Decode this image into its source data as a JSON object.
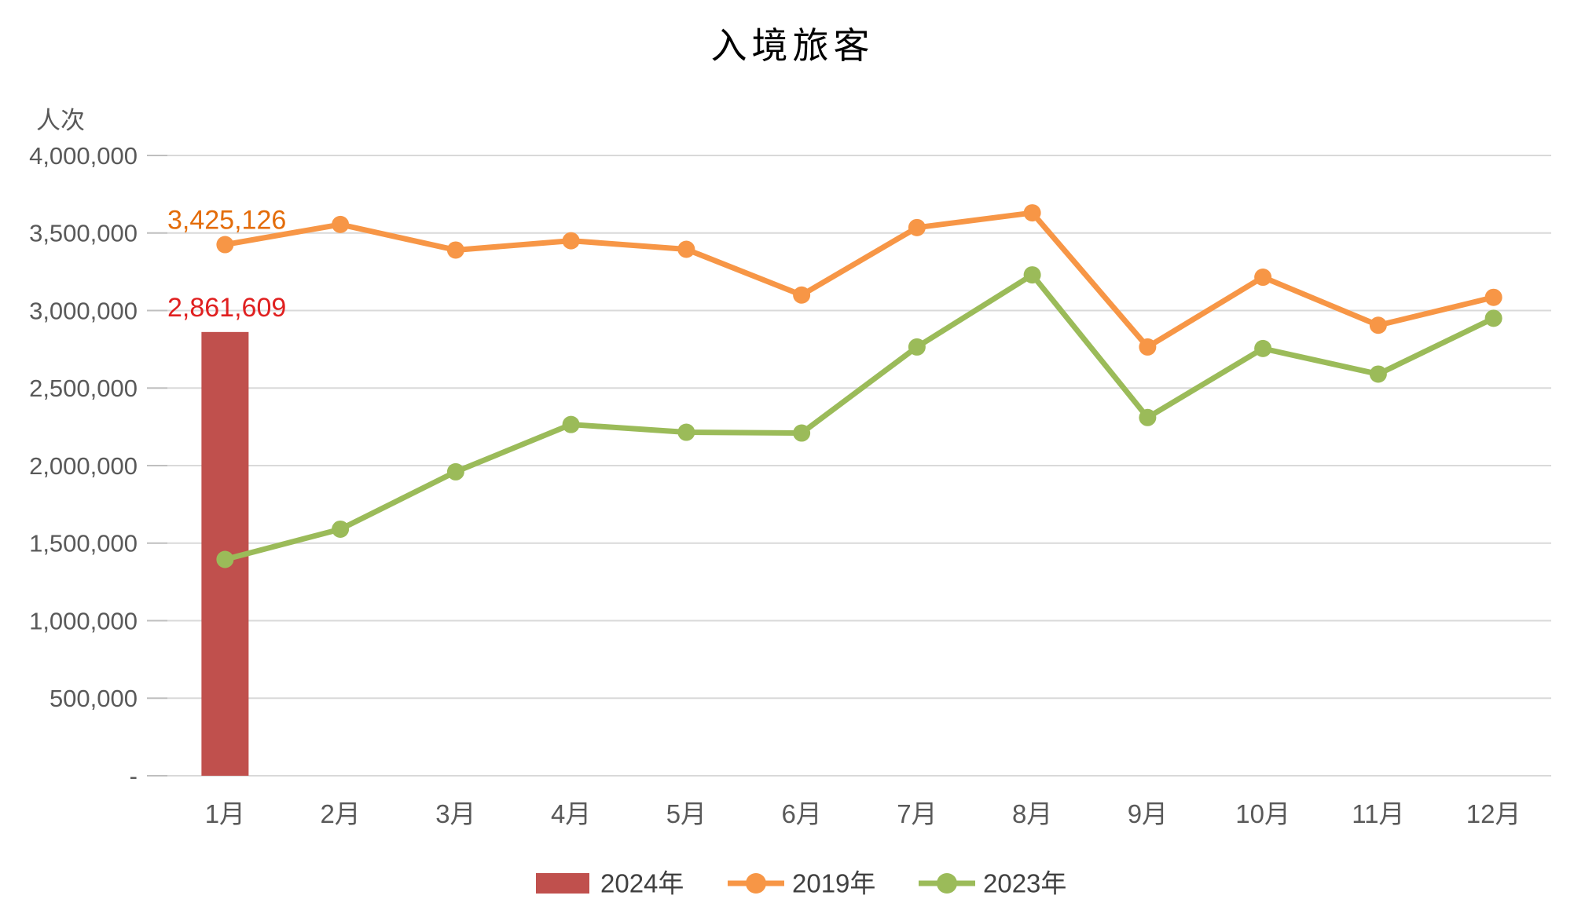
{
  "chart": {
    "title": "入境旅客",
    "unit_label": "人次"
  },
  "chart_data": {
    "type": "combo-bar-line",
    "title": "入境旅客",
    "ylabel": "人次",
    "xlabel": "",
    "ylim": [
      0,
      4000000
    ],
    "grid": "horizontal",
    "legend_position": "bottom",
    "categories": [
      "1月",
      "2月",
      "3月",
      "4月",
      "5月",
      "6月",
      "7月",
      "8月",
      "9月",
      "10月",
      "11月",
      "12月"
    ],
    "yticks": [
      {
        "value": 4000000,
        "label": "4,000,000"
      },
      {
        "value": 3500000,
        "label": "3,500,000"
      },
      {
        "value": 3000000,
        "label": "3,000,000"
      },
      {
        "value": 2500000,
        "label": "2,500,000"
      },
      {
        "value": 2000000,
        "label": "2,000,000"
      },
      {
        "value": 1500000,
        "label": "1,500,000"
      },
      {
        "value": 1000000,
        "label": "1,000,000"
      },
      {
        "value": 500000,
        "label": "500,000"
      },
      {
        "value": 0,
        "label": "-"
      }
    ],
    "series": [
      {
        "name": "2024年",
        "type": "bar",
        "color": "#C0504D",
        "values": [
          2861609,
          null,
          null,
          null,
          null,
          null,
          null,
          null,
          null,
          null,
          null,
          null
        ]
      },
      {
        "name": "2019年",
        "type": "line",
        "color": "#F79646",
        "values": [
          3425126,
          3555000,
          3390000,
          3450000,
          3395000,
          3100000,
          3535000,
          3630000,
          2765000,
          3215000,
          2905000,
          3085000
        ]
      },
      {
        "name": "2023年",
        "type": "line",
        "color": "#9BBB59",
        "values": [
          1395000,
          1590000,
          1960000,
          2265000,
          2215000,
          2210000,
          2765000,
          3230000,
          2310000,
          2755000,
          2590000,
          2950000
        ]
      }
    ],
    "annotations": [
      {
        "text": "3,425,126",
        "series": "2019年",
        "month_index": 0,
        "color": "#E36C0A"
      },
      {
        "text": "2,861,609",
        "series": "2024年",
        "month_index": 0,
        "color": "#E02020"
      }
    ],
    "colors": {
      "gridline": "#D9D9D9",
      "tick_stub": "#BFBFBF",
      "axis_text": "#595959",
      "legend_text": "#404040",
      "title_text": "#000000"
    }
  }
}
